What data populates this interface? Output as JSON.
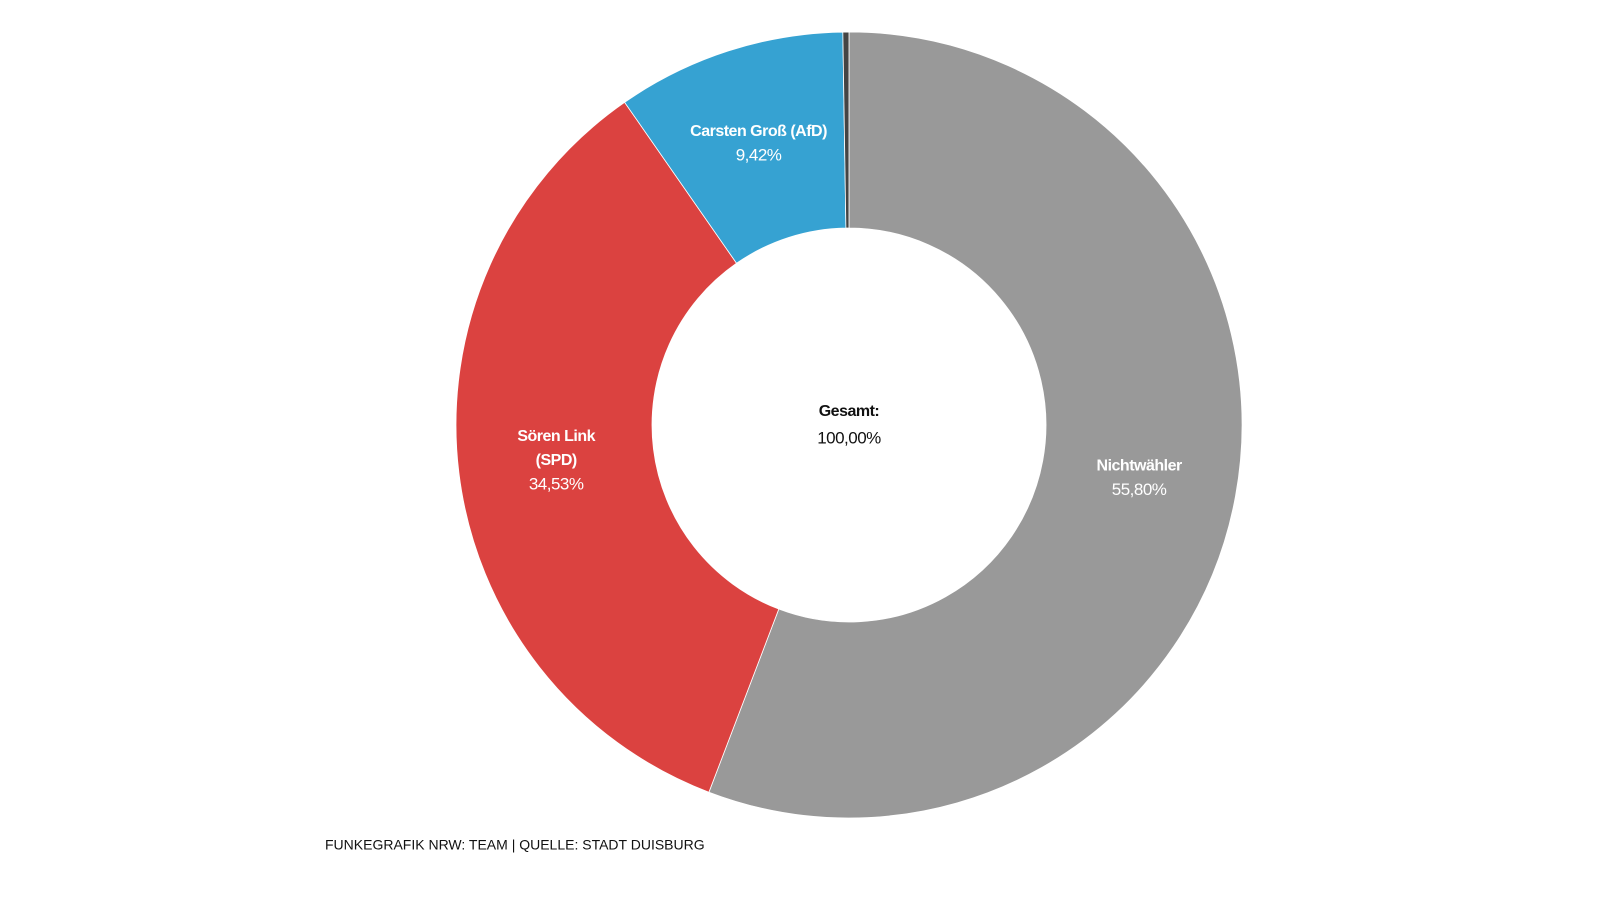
{
  "chart_data": {
    "type": "donut",
    "categories": [
      "Nichtwähler",
      "Sören Link\n(SPD)",
      "Carsten Groß (AfD)",
      null
    ],
    "values": [
      55.8,
      34.53,
      9.42,
      0.25
    ],
    "value_labels": [
      "55,80%",
      "34,53%",
      "9,42%",
      null
    ],
    "colors": [
      "#999999",
      "#db4240",
      "#36a2d2",
      "#444444"
    ],
    "center": {
      "title": "Gesamt:",
      "value": 100,
      "value_label": "100,00%"
    },
    "source": "FUNKEGRAFIK NRW: TEAM | QUELLE: STADT DUISBURG"
  }
}
